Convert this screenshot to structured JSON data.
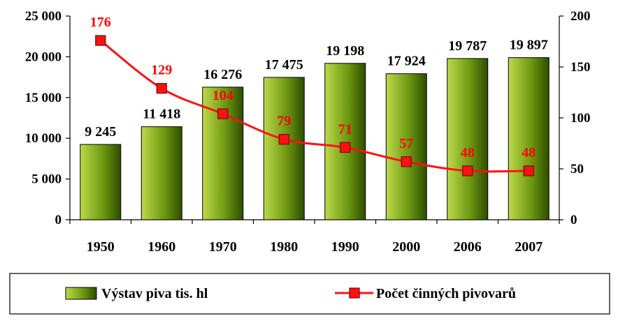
{
  "chart_data": {
    "type": "bar",
    "categories": [
      "1950",
      "1960",
      "1970",
      "1980",
      "1990",
      "2000",
      "2006",
      "2007"
    ],
    "series": [
      {
        "name": "Výstav piva tis. hl",
        "type": "bar",
        "axis": "left",
        "values": [
          9245,
          11418,
          16276,
          17475,
          19198,
          17924,
          19787,
          19897
        ],
        "labels": [
          "9 245",
          "11 418",
          "16 276",
          "17 475",
          "19 198",
          "17 924",
          "19 787",
          "19 897"
        ]
      },
      {
        "name": "Počet činných pivovarů",
        "type": "line",
        "axis": "right",
        "values": [
          176,
          129,
          104,
          79,
          71,
          57,
          48,
          48
        ],
        "labels": [
          "176",
          "129",
          "104",
          "79",
          "71",
          "57",
          "48",
          "48"
        ]
      }
    ],
    "y_left": {
      "ylim": [
        0,
        25000
      ],
      "ticks": [
        0,
        5000,
        10000,
        15000,
        20000,
        25000
      ],
      "tick_labels": [
        "0",
        "5 000",
        "10 000",
        "15 000",
        "20 000",
        "25 000"
      ]
    },
    "y_right": {
      "ylim": [
        0,
        200
      ],
      "ticks": [
        0,
        50,
        100,
        150,
        200
      ],
      "tick_labels": [
        "0",
        "50",
        "100",
        "150",
        "200"
      ]
    },
    "grid": false,
    "legend": "bottom",
    "colors": {
      "bar_light": "#bcd94a",
      "bar_dark": "#2e4d00",
      "bar_stroke": "#000000",
      "line": "#ff1111",
      "marker_fill": "#ff1111",
      "marker_stroke": "#800000",
      "line_label": "#ff0000",
      "bar_label": "#000000"
    }
  }
}
